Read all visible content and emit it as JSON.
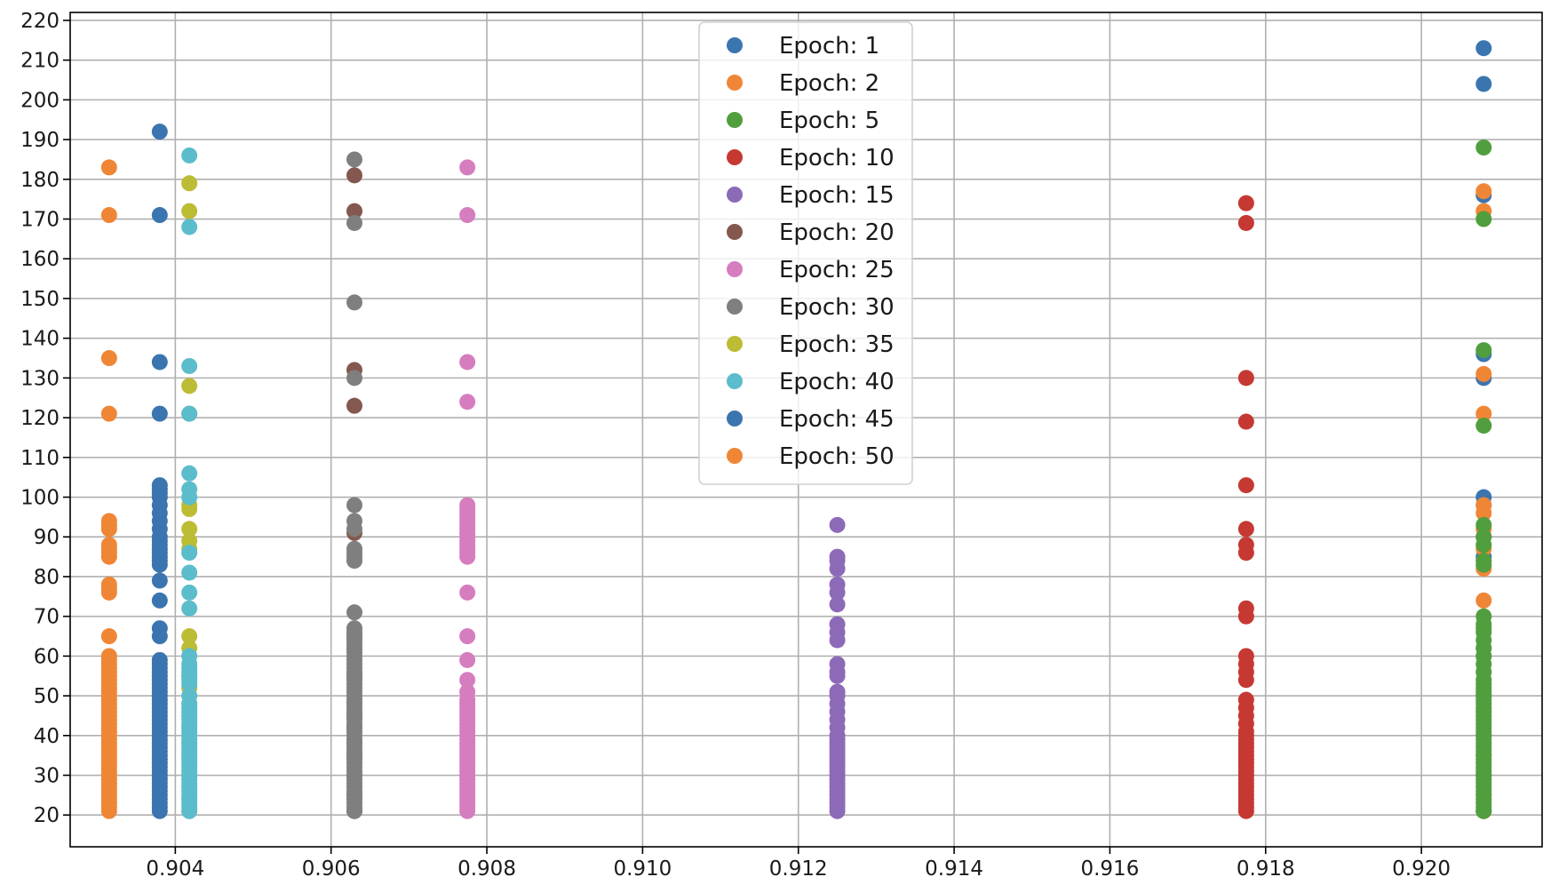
{
  "chart_data": {
    "type": "scatter",
    "title": "",
    "xlabel": "",
    "ylabel": "",
    "xlim": [
      0.90265,
      0.92155
    ],
    "ylim": [
      12,
      222
    ],
    "grid": true,
    "legend_position": "upper-center",
    "x_ticks": [
      {
        "value": 0.904,
        "label": "0.904"
      },
      {
        "value": 0.906,
        "label": "0.906"
      },
      {
        "value": 0.908,
        "label": "0.908"
      },
      {
        "value": 0.91,
        "label": "0.910"
      },
      {
        "value": 0.912,
        "label": "0.912"
      },
      {
        "value": 0.914,
        "label": "0.914"
      },
      {
        "value": 0.916,
        "label": "0.916"
      },
      {
        "value": 0.918,
        "label": "0.918"
      },
      {
        "value": 0.92,
        "label": "0.920"
      }
    ],
    "y_ticks": [
      {
        "value": 20,
        "label": "20"
      },
      {
        "value": 30,
        "label": "30"
      },
      {
        "value": 40,
        "label": "40"
      },
      {
        "value": 50,
        "label": "50"
      },
      {
        "value": 60,
        "label": "60"
      },
      {
        "value": 70,
        "label": "70"
      },
      {
        "value": 80,
        "label": "80"
      },
      {
        "value": 90,
        "label": "90"
      },
      {
        "value": 100,
        "label": "100"
      },
      {
        "value": 110,
        "label": "110"
      },
      {
        "value": 120,
        "label": "120"
      },
      {
        "value": 130,
        "label": "130"
      },
      {
        "value": 140,
        "label": "140"
      },
      {
        "value": 150,
        "label": "150"
      },
      {
        "value": 160,
        "label": "160"
      },
      {
        "value": 170,
        "label": "170"
      },
      {
        "value": 180,
        "label": "180"
      },
      {
        "value": 190,
        "label": "190"
      },
      {
        "value": 200,
        "label": "200"
      },
      {
        "value": 210,
        "label": "210"
      },
      {
        "value": 220,
        "label": "220"
      }
    ],
    "series": [
      {
        "name": "Epoch: 1",
        "color": "#3b75af",
        "x": 0.9208,
        "y": [
          213,
          204,
          176,
          136,
          130,
          100,
          98,
          90,
          85,
          60,
          50,
          40,
          30,
          21
        ]
      },
      {
        "name": "Epoch: 2",
        "color": "#ef8636",
        "x": 0.9208,
        "y": [
          177,
          172,
          131,
          121,
          98,
          96,
          92,
          87,
          82,
          74,
          62,
          56,
          50,
          46,
          40,
          35,
          30,
          25,
          21
        ]
      },
      {
        "name": "Epoch: 5",
        "color": "#519e3e",
        "x": 0.9208,
        "y": [
          188,
          170,
          137,
          118,
          93,
          90,
          88,
          84,
          83,
          70,
          68,
          67,
          66,
          64,
          62,
          60,
          58,
          56,
          54,
          53,
          52,
          51,
          50,
          49,
          48,
          47,
          46,
          45,
          44,
          43,
          42,
          41,
          40,
          39,
          38,
          37,
          36,
          35,
          34,
          33,
          32,
          31,
          30,
          29,
          28,
          27,
          26,
          25,
          24,
          23,
          22,
          21
        ]
      },
      {
        "name": "Epoch: 10",
        "color": "#c53932",
        "x": 0.91775,
        "y": [
          174,
          169,
          130,
          119,
          103,
          92,
          88,
          86,
          72,
          70,
          60,
          58,
          56,
          54,
          49,
          47,
          45,
          43,
          41,
          40,
          39,
          38,
          37,
          36,
          35,
          34,
          33,
          32,
          31,
          30,
          29,
          28,
          27,
          26,
          25,
          24,
          23,
          22,
          21
        ]
      },
      {
        "name": "Epoch: 15",
        "color": "#8d6ab8",
        "x": 0.9125,
        "y": [
          93,
          85,
          84,
          82,
          78,
          76,
          73,
          68,
          66,
          64,
          58,
          56,
          55,
          51,
          50,
          48,
          46,
          44,
          42,
          40,
          39,
          38,
          37,
          36,
          35,
          34,
          33,
          32,
          31,
          30,
          29,
          28,
          27,
          26,
          25,
          24,
          23,
          22,
          21
        ]
      },
      {
        "name": "Epoch: 20",
        "color": "#84584e",
        "x": 0.9063,
        "y": [
          181,
          172,
          132,
          123,
          91,
          65,
          62,
          55,
          48,
          45,
          42,
          38,
          35,
          30,
          25,
          21
        ]
      },
      {
        "name": "Epoch: 25",
        "color": "#d57dbf",
        "x": 0.90775,
        "y": [
          183,
          171,
          134,
          124,
          98,
          97,
          96,
          95,
          94,
          93,
          92,
          91,
          90,
          89,
          88,
          87,
          86,
          85,
          76,
          65,
          59,
          54,
          51,
          49,
          48,
          47,
          46,
          45,
          44,
          43,
          42,
          41,
          40,
          39,
          38,
          37,
          36,
          35,
          34,
          33,
          32,
          31,
          30,
          29,
          28,
          27,
          26,
          25,
          24,
          23,
          22,
          21
        ]
      },
      {
        "name": "Epoch: 30",
        "color": "#7f7f7f",
        "x": 0.9063,
        "y": [
          185,
          169,
          149,
          130,
          98,
          94,
          92,
          87,
          86,
          85,
          84,
          71,
          67,
          66,
          65,
          64,
          63,
          62,
          61,
          60,
          59,
          58,
          57,
          56,
          55,
          54,
          53,
          52,
          51,
          50,
          49,
          48,
          47,
          46,
          45,
          44,
          43,
          42,
          41,
          40,
          39,
          38,
          37,
          36,
          35,
          34,
          33,
          32,
          31,
          30,
          29,
          28,
          27,
          26,
          25,
          24,
          23,
          22,
          21
        ]
      },
      {
        "name": "Epoch: 35",
        "color": "#bcbc35",
        "x": 0.90418,
        "y": [
          179,
          172,
          128,
          121,
          98,
          97,
          92,
          89,
          87,
          65,
          62,
          55,
          52,
          48,
          45,
          42,
          38,
          35,
          30,
          27,
          24,
          21
        ]
      },
      {
        "name": "Epoch: 40",
        "color": "#5bbccc",
        "x": 0.90418,
        "y": [
          186,
          168,
          133,
          121,
          106,
          102,
          100,
          86,
          81,
          76,
          72,
          60,
          58,
          57,
          56,
          55,
          54,
          53,
          50,
          48,
          47,
          46,
          45,
          44,
          43,
          42,
          41,
          40,
          39,
          38,
          37,
          36,
          35,
          34,
          33,
          32,
          31,
          30,
          29,
          28,
          27,
          26,
          25,
          24,
          23,
          22,
          21
        ]
      },
      {
        "name": "Epoch: 45",
        "color": "#3b75af",
        "x": 0.9038,
        "y": [
          192,
          171,
          134,
          121,
          103,
          102,
          101,
          100,
          98,
          96,
          94,
          92,
          90,
          89,
          88,
          87,
          86,
          85,
          84,
          83,
          79,
          74,
          67,
          65,
          59,
          58,
          57,
          56,
          55,
          54,
          53,
          52,
          51,
          50,
          49,
          48,
          47,
          46,
          45,
          44,
          43,
          42,
          41,
          40,
          39,
          38,
          37,
          36,
          35,
          34,
          33,
          32,
          31,
          30,
          29,
          28,
          27,
          26,
          25,
          24,
          23,
          22,
          21
        ]
      },
      {
        "name": "Epoch: 50",
        "color": "#ef8636",
        "x": 0.90315,
        "y": [
          183,
          171,
          135,
          121,
          94,
          93,
          92,
          88,
          87,
          86,
          85,
          78,
          77,
          76,
          65,
          60,
          59,
          58,
          57,
          56,
          55,
          54,
          53,
          52,
          51,
          50,
          49,
          48,
          47,
          46,
          45,
          44,
          43,
          42,
          41,
          40,
          39,
          38,
          37,
          36,
          35,
          34,
          33,
          32,
          31,
          30,
          29,
          28,
          27,
          26,
          25,
          24,
          23,
          22,
          21
        ]
      }
    ]
  }
}
